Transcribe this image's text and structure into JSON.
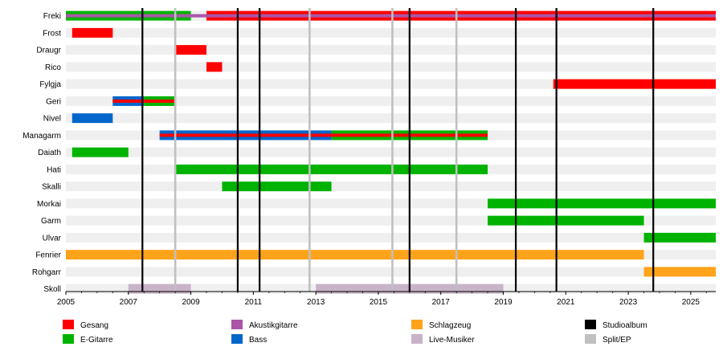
{
  "chart_data": {
    "type": "timeline",
    "title": "",
    "xlabel": "",
    "ylabel": "",
    "xlim": [
      2005,
      2025.8
    ],
    "xticks": [
      "2005",
      "2007",
      "2009",
      "2011",
      "2013",
      "2015",
      "2017",
      "2019",
      "2021",
      "2023",
      "2025"
    ],
    "colors": {
      "Gesang": "#ff0000",
      "E-Gitarre": "#00b300",
      "Akustikgitarre": "#aa55aa",
      "Bass": "#0066cc",
      "Schlagzeug": "#ffa31a",
      "Live-Musiker": "#c8b3c8",
      "Studioalbum": "#000000",
      "Split/EP": "#c0c0c0"
    },
    "members": [
      {
        "name": "Freki",
        "bars": [
          {
            "role": "E-Gitarre",
            "start": 2005.0,
            "end": 2009.0,
            "part": "full"
          },
          {
            "role": "Akustikgitarre",
            "start": 2005.0,
            "end": 2025.8,
            "part": "mid"
          },
          {
            "role": "Gesang",
            "start": 2009.5,
            "end": 2025.8,
            "part": "full"
          },
          {
            "role": "Akustikgitarre",
            "start": 2009.5,
            "end": 2025.8,
            "part": "mid"
          }
        ]
      },
      {
        "name": "Frost",
        "bars": [
          {
            "role": "Gesang",
            "start": 2005.2,
            "end": 2006.5,
            "part": "full"
          }
        ]
      },
      {
        "name": "Draugr",
        "bars": [
          {
            "role": "Gesang",
            "start": 2008.5,
            "end": 2009.5,
            "part": "full"
          }
        ]
      },
      {
        "name": "Rico",
        "bars": [
          {
            "role": "Gesang",
            "start": 2009.5,
            "end": 2010.0,
            "part": "full"
          }
        ]
      },
      {
        "name": "Fylgja",
        "bars": [
          {
            "role": "Gesang",
            "start": 2020.6,
            "end": 2025.8,
            "part": "full"
          }
        ]
      },
      {
        "name": "Geri",
        "bars": [
          {
            "role": "Bass",
            "start": 2006.5,
            "end": 2007.5,
            "part": "full"
          },
          {
            "role": "E-Gitarre",
            "start": 2007.5,
            "end": 2008.5,
            "part": "full"
          },
          {
            "role": "Gesang",
            "start": 2006.5,
            "end": 2008.5,
            "part": "mid"
          }
        ]
      },
      {
        "name": "Nivel",
        "bars": [
          {
            "role": "Bass",
            "start": 2005.2,
            "end": 2006.5,
            "part": "full"
          }
        ]
      },
      {
        "name": "Managarm",
        "bars": [
          {
            "role": "Bass",
            "start": 2008.0,
            "end": 2013.5,
            "part": "full"
          },
          {
            "role": "E-Gitarre",
            "start": 2013.5,
            "end": 2018.5,
            "part": "full"
          },
          {
            "role": "Gesang",
            "start": 2008.0,
            "end": 2018.5,
            "part": "mid"
          }
        ]
      },
      {
        "name": "Daiath",
        "bars": [
          {
            "role": "E-Gitarre",
            "start": 2005.2,
            "end": 2007.0,
            "part": "full"
          }
        ]
      },
      {
        "name": "Hati",
        "bars": [
          {
            "role": "E-Gitarre",
            "start": 2008.5,
            "end": 2018.5,
            "part": "full"
          }
        ]
      },
      {
        "name": "Skalli",
        "bars": [
          {
            "role": "E-Gitarre",
            "start": 2010.0,
            "end": 2013.5,
            "part": "full"
          }
        ]
      },
      {
        "name": "Morkai",
        "bars": [
          {
            "role": "E-Gitarre",
            "start": 2018.5,
            "end": 2025.8,
            "part": "full"
          }
        ]
      },
      {
        "name": "Garm",
        "bars": [
          {
            "role": "E-Gitarre",
            "start": 2018.5,
            "end": 2023.5,
            "part": "full"
          }
        ]
      },
      {
        "name": "Ulvar",
        "bars": [
          {
            "role": "E-Gitarre",
            "start": 2023.5,
            "end": 2025.8,
            "part": "full"
          }
        ]
      },
      {
        "name": "Fenrier",
        "bars": [
          {
            "role": "Schlagzeug",
            "start": 2005.0,
            "end": 2023.5,
            "part": "full"
          }
        ]
      },
      {
        "name": "Rohgarr",
        "bars": [
          {
            "role": "Schlagzeug",
            "start": 2023.5,
            "end": 2025.8,
            "part": "full"
          }
        ]
      },
      {
        "name": "Skoll",
        "bars": [
          {
            "role": "Live-Musiker",
            "start": 2007.0,
            "end": 2009.0,
            "part": "full"
          },
          {
            "role": "Live-Musiker",
            "start": 2013.0,
            "end": 2019.0,
            "part": "full"
          }
        ]
      }
    ],
    "releases": [
      {
        "type": "Studioalbum",
        "year": 2007.45
      },
      {
        "type": "Split/EP",
        "year": 2008.5
      },
      {
        "type": "Studioalbum",
        "year": 2010.5
      },
      {
        "type": "Studioalbum",
        "year": 2011.2
      },
      {
        "type": "Split/EP",
        "year": 2012.8
      },
      {
        "type": "Split/EP",
        "year": 2015.45
      },
      {
        "type": "Studioalbum",
        "year": 2016.0
      },
      {
        "type": "Split/EP",
        "year": 2017.5
      },
      {
        "type": "Studioalbum",
        "year": 2019.4
      },
      {
        "type": "Studioalbum",
        "year": 2020.7
      },
      {
        "type": "Studioalbum",
        "year": 2023.8
      }
    ],
    "legend": [
      "Gesang",
      "Akustikgitarre",
      "Schlagzeug",
      "Studioalbum",
      "E-Gitarre",
      "Bass",
      "Live-Musiker",
      "Split/EP"
    ]
  }
}
